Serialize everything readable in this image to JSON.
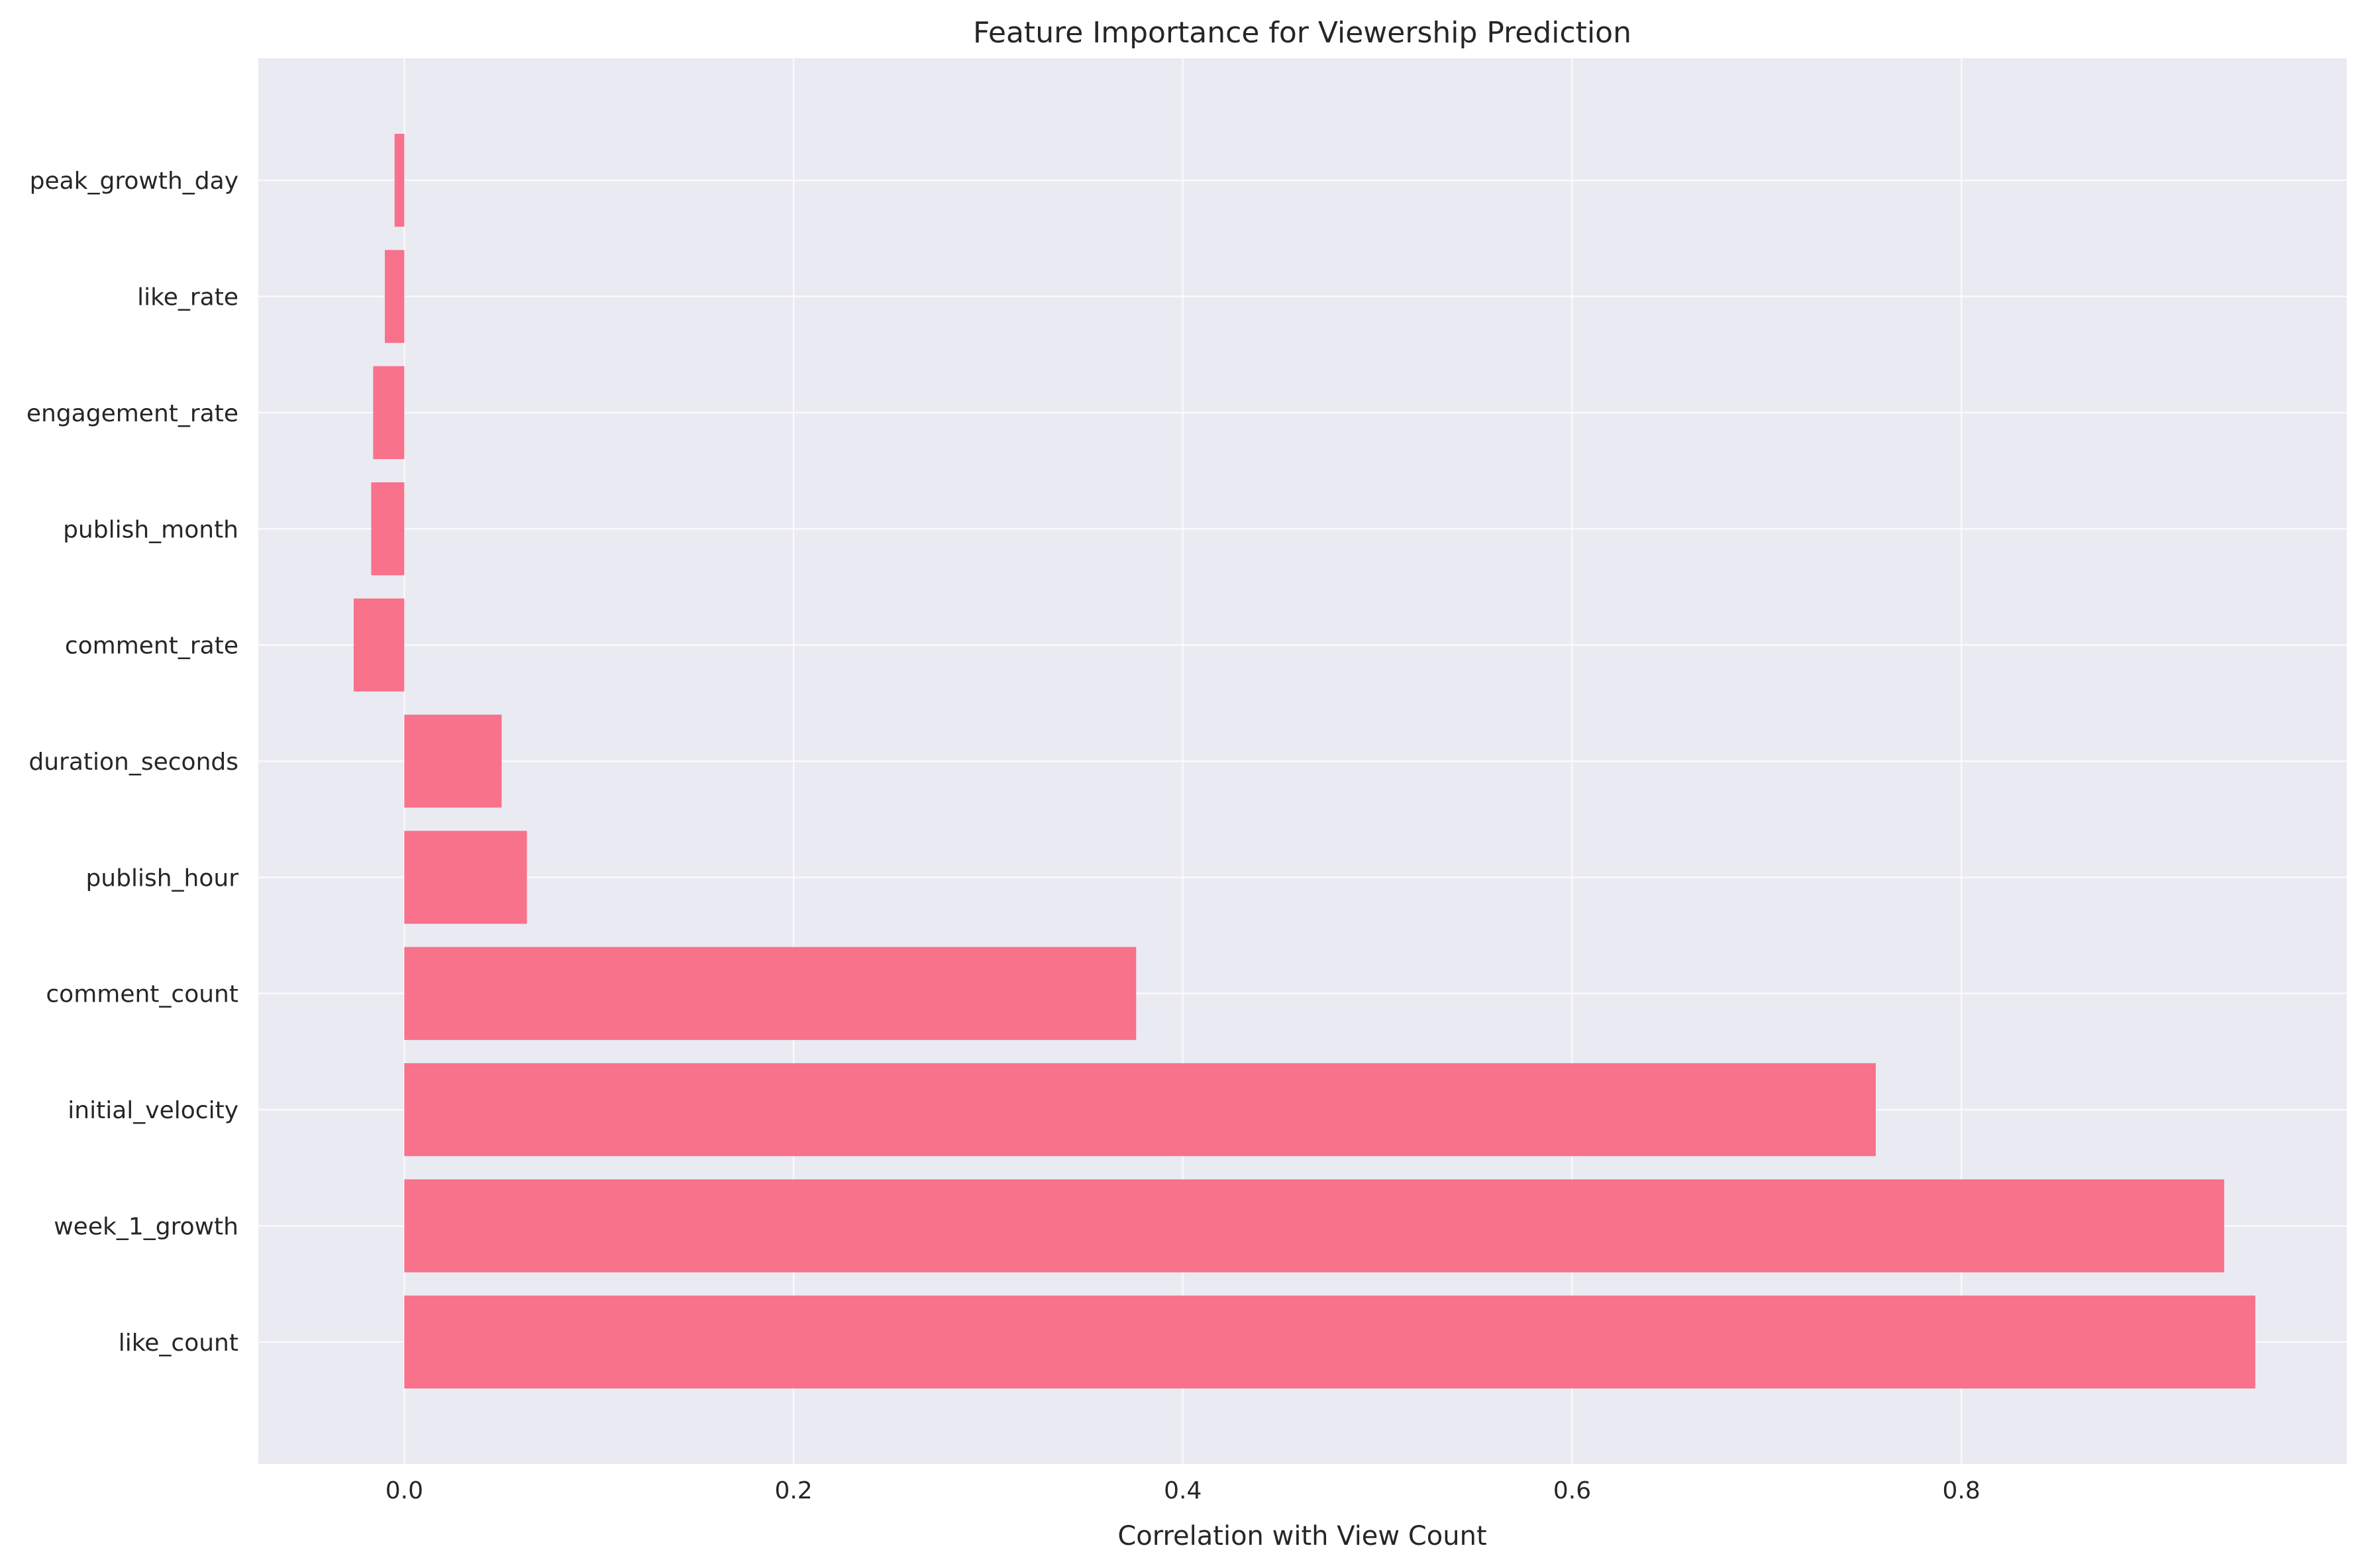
{
  "chart_data": {
    "type": "bar",
    "orientation": "horizontal",
    "title": "Feature Importance for Viewership Prediction",
    "xlabel": "Correlation with View Count",
    "ylabel": "",
    "xlim": [
      -0.075,
      0.998
    ],
    "xticks": [
      0.0,
      0.2,
      0.4,
      0.6,
      0.8
    ],
    "xtick_labels": [
      "0.0",
      "0.2",
      "0.4",
      "0.6",
      "0.8"
    ],
    "grid": true,
    "categories": [
      "peak_growth_day",
      "like_rate",
      "engagement_rate",
      "publish_month",
      "comment_rate",
      "duration_seconds",
      "publish_hour",
      "comment_count",
      "initial_velocity",
      "week_1_growth",
      "like_count"
    ],
    "values": [
      -0.005,
      -0.01,
      -0.016,
      -0.017,
      -0.026,
      0.05,
      0.063,
      0.376,
      0.756,
      0.935,
      0.951
    ],
    "colors": {
      "bar": "#f7728a",
      "plot_bg": "#eaeaf2",
      "grid": "#ffffff",
      "text": "#262626"
    }
  }
}
